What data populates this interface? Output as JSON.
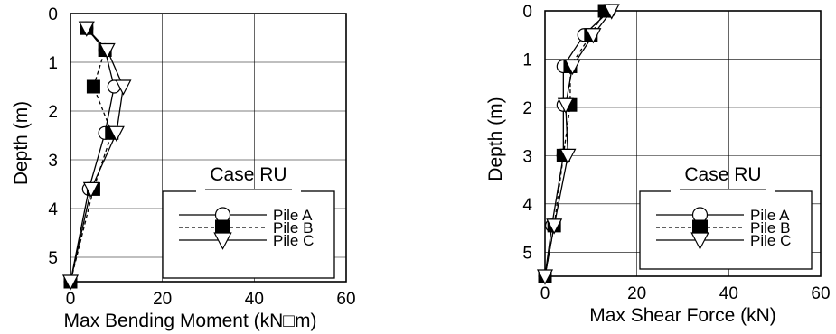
{
  "chart_data": [
    {
      "type": "line",
      "xlabel": "Max Bending Moment (kN□m)",
      "ylabel": "Depth (m)",
      "xlim": [
        0,
        60
      ],
      "ylim": [
        0,
        5.5
      ],
      "y_inverted": true,
      "x_ticks": [
        "0",
        "20",
        "40",
        "60"
      ],
      "y_ticks": [
        "0",
        "1",
        "2",
        "3",
        "4",
        "5"
      ],
      "grid": true,
      "legend": {
        "title": "Case RU",
        "position": "bottom-right"
      },
      "series": [
        {
          "name": "Pile A",
          "marker": "circle",
          "line": "solid",
          "x": [
            3.5,
            7.5,
            9.5,
            7.5,
            4.0,
            0.0
          ],
          "y": [
            0.3,
            0.75,
            1.5,
            2.45,
            3.6,
            5.5
          ]
        },
        {
          "name": "Pile B",
          "marker": "square",
          "line": "dashed",
          "x": [
            3.5,
            7.5,
            5.0,
            9.0,
            5.0,
            0.0
          ],
          "y": [
            0.3,
            0.75,
            1.5,
            2.45,
            3.6,
            5.5
          ]
        },
        {
          "name": "Pile C",
          "marker": "triangle",
          "line": "solid",
          "x": [
            3.5,
            8.0,
            11.5,
            10.0,
            4.5,
            0.0
          ],
          "y": [
            0.3,
            0.75,
            1.5,
            2.45,
            3.6,
            5.5
          ]
        }
      ]
    },
    {
      "type": "line",
      "xlabel": "Max Shear Force (kN)",
      "ylabel": "Depth (m)",
      "xlim": [
        0,
        60
      ],
      "ylim": [
        0,
        5.5
      ],
      "y_inverted": true,
      "x_ticks": [
        "0",
        "20",
        "40",
        "60"
      ],
      "y_ticks": [
        "0",
        "1",
        "2",
        "3",
        "4",
        "5"
      ],
      "grid": true,
      "legend": {
        "title": "Case RU",
        "position": "bottom-right"
      },
      "series": [
        {
          "name": "Pile A",
          "marker": "circle",
          "line": "solid",
          "x": [
            14.0,
            8.5,
            4.0,
            4.0,
            4.0,
            1.5,
            0.0
          ],
          "y": [
            0.0,
            0.5,
            1.15,
            1.95,
            3.0,
            4.45,
            5.5
          ]
        },
        {
          "name": "Pile B",
          "marker": "square",
          "line": "dashed",
          "x": [
            13.0,
            10.0,
            5.5,
            5.5,
            4.0,
            2.0,
            0.0
          ],
          "y": [
            0.0,
            0.5,
            1.15,
            1.95,
            3.0,
            4.45,
            5.5
          ]
        },
        {
          "name": "Pile C",
          "marker": "triangle",
          "line": "solid",
          "x": [
            14.5,
            10.5,
            6.0,
            4.5,
            5.0,
            2.0,
            0.0
          ],
          "y": [
            0.0,
            0.5,
            1.15,
            1.95,
            3.0,
            4.45,
            5.5
          ]
        }
      ]
    }
  ]
}
